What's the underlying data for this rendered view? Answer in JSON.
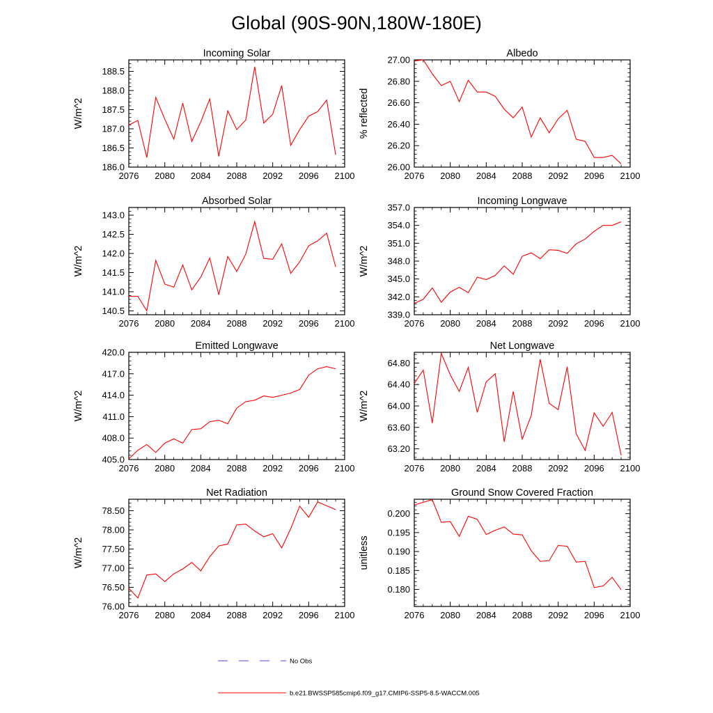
{
  "page_title": "Global (90S-90N,180W-180E)",
  "colors": {
    "series": "#ff0000",
    "obs": "#4a4ad8",
    "axis": "#000000"
  },
  "legend": {
    "obs_label": "No Obs",
    "model_label": "b.e21.BWSSP585cmip6.f09_g17.CMIP6-SSP5-8.5-WACCM.005"
  },
  "chart_data": [
    {
      "type": "line",
      "title": "Incoming Solar",
      "xlabel": "",
      "ylabel": "W/m^2",
      "xlim": [
        2076,
        2100
      ],
      "ylim": [
        186.0,
        188.8
      ],
      "xticks": [
        "2076",
        "2080",
        "2084",
        "2088",
        "2092",
        "2096",
        "2100"
      ],
      "yticks": [
        "186.0",
        "186.5",
        "187.0",
        "187.5",
        "188.0",
        "188.5"
      ],
      "x": [
        2076,
        2077,
        2078,
        2079,
        2080,
        2081,
        2082,
        2083,
        2084,
        2085,
        2086,
        2087,
        2088,
        2089,
        2090,
        2091,
        2092,
        2093,
        2094,
        2095,
        2096,
        2097,
        2098,
        2099
      ],
      "values": [
        187.1,
        187.22,
        186.25,
        187.82,
        187.25,
        186.73,
        187.67,
        186.67,
        187.18,
        187.78,
        186.28,
        187.47,
        186.98,
        187.23,
        188.62,
        187.15,
        187.38,
        188.13,
        186.57,
        186.98,
        187.33,
        187.45,
        187.75,
        186.32
      ]
    },
    {
      "type": "line",
      "title": "Albedo",
      "xlabel": "",
      "ylabel": "% reflected",
      "xlim": [
        2076,
        2100
      ],
      "ylim": [
        26.0,
        27.0
      ],
      "xticks": [
        "2076",
        "2080",
        "2084",
        "2088",
        "2092",
        "2096",
        "2100"
      ],
      "yticks": [
        "26.00",
        "26.20",
        "26.40",
        "26.60",
        "26.80",
        "27.00"
      ],
      "x": [
        2076,
        2077,
        2078,
        2079,
        2080,
        2081,
        2082,
        2083,
        2084,
        2085,
        2086,
        2087,
        2088,
        2089,
        2090,
        2091,
        2092,
        2093,
        2094,
        2095,
        2096,
        2097,
        2098,
        2099
      ],
      "values": [
        26.99,
        27.0,
        26.87,
        26.76,
        26.8,
        26.61,
        26.81,
        26.7,
        26.7,
        26.66,
        26.54,
        26.46,
        26.56,
        26.28,
        26.46,
        26.32,
        26.45,
        26.53,
        26.26,
        26.24,
        26.09,
        26.09,
        26.11,
        26.03
      ]
    },
    {
      "type": "line",
      "title": "Absorbed Solar",
      "xlabel": "",
      "ylabel": "W/m^2",
      "xlim": [
        2076,
        2100
      ],
      "ylim": [
        140.4,
        143.2
      ],
      "xticks": [
        "2076",
        "2080",
        "2084",
        "2088",
        "2092",
        "2096",
        "2100"
      ],
      "yticks": [
        "140.5",
        "141.0",
        "141.5",
        "142.0",
        "142.5",
        "143.0"
      ],
      "x": [
        2076,
        2077,
        2078,
        2079,
        2080,
        2081,
        2082,
        2083,
        2084,
        2085,
        2086,
        2087,
        2088,
        2089,
        2090,
        2091,
        2092,
        2093,
        2094,
        2095,
        2096,
        2097,
        2098,
        2099
      ],
      "values": [
        140.88,
        140.88,
        140.5,
        141.82,
        141.2,
        141.12,
        141.7,
        141.05,
        141.38,
        141.88,
        140.92,
        141.92,
        141.53,
        141.98,
        142.83,
        141.87,
        141.85,
        142.25,
        141.48,
        141.78,
        142.2,
        142.33,
        142.53,
        141.65
      ]
    },
    {
      "type": "line",
      "title": "Incoming Longwave",
      "xlabel": "",
      "ylabel": "W/m^2",
      "xlim": [
        2076,
        2100
      ],
      "ylim": [
        339.0,
        357.0
      ],
      "xticks": [
        "2076",
        "2080",
        "2084",
        "2088",
        "2092",
        "2096",
        "2100"
      ],
      "yticks": [
        "339.0",
        "342.0",
        "345.0",
        "348.0",
        "351.0",
        "354.0",
        "357.0"
      ],
      "x": [
        2076,
        2077,
        2078,
        2079,
        2080,
        2081,
        2082,
        2083,
        2084,
        2085,
        2086,
        2087,
        2088,
        2089,
        2090,
        2091,
        2092,
        2093,
        2094,
        2095,
        2096,
        2097,
        2098,
        2099
      ],
      "values": [
        340.9,
        341.6,
        343.5,
        341.1,
        342.8,
        343.6,
        342.7,
        345.3,
        344.9,
        345.6,
        347.2,
        345.8,
        348.8,
        349.4,
        348.4,
        349.9,
        349.8,
        349.3,
        350.9,
        351.7,
        353.0,
        354.0,
        354.0,
        354.6
      ]
    },
    {
      "type": "line",
      "title": "Emitted Longwave",
      "xlabel": "",
      "ylabel": "W/m^2",
      "xlim": [
        2076,
        2100
      ],
      "ylim": [
        405.0,
        420.0
      ],
      "xticks": [
        "2076",
        "2080",
        "2084",
        "2088",
        "2092",
        "2096",
        "2100"
      ],
      "yticks": [
        "405.0",
        "408.0",
        "411.0",
        "414.0",
        "417.0",
        "420.0"
      ],
      "x": [
        2076,
        2077,
        2078,
        2079,
        2080,
        2081,
        2082,
        2083,
        2084,
        2085,
        2086,
        2087,
        2088,
        2089,
        2090,
        2091,
        2092,
        2093,
        2094,
        2095,
        2096,
        2097,
        2098,
        2099
      ],
      "values": [
        405.1,
        406.3,
        407.1,
        406.0,
        407.3,
        407.9,
        407.3,
        409.2,
        409.3,
        410.3,
        410.5,
        410.0,
        412.2,
        413.1,
        413.3,
        413.9,
        413.7,
        414.0,
        414.3,
        414.8,
        416.8,
        417.7,
        418.0,
        417.7
      ]
    },
    {
      "type": "line",
      "title": "Net Longwave",
      "xlabel": "",
      "ylabel": "W/m^2",
      "xlim": [
        2076,
        2100
      ],
      "ylim": [
        63.0,
        65.0
      ],
      "xticks": [
        "2076",
        "2080",
        "2084",
        "2088",
        "2092",
        "2096",
        "2100"
      ],
      "yticks": [
        "63.20",
        "63.60",
        "64.00",
        "64.40",
        "64.80"
      ],
      "x": [
        2076,
        2077,
        2078,
        2079,
        2080,
        2081,
        2082,
        2083,
        2084,
        2085,
        2086,
        2087,
        2088,
        2089,
        2090,
        2091,
        2092,
        2093,
        2094,
        2095,
        2096,
        2097,
        2098,
        2099
      ],
      "values": [
        64.42,
        64.67,
        63.68,
        64.98,
        64.58,
        64.27,
        64.72,
        63.88,
        64.45,
        64.6,
        63.33,
        64.27,
        63.38,
        63.82,
        64.87,
        64.05,
        63.93,
        64.73,
        63.48,
        63.17,
        63.87,
        63.62,
        63.88,
        63.08
      ]
    },
    {
      "type": "line",
      "title": "Net Radiation",
      "xlabel": "",
      "ylabel": "W/m^2",
      "xlim": [
        2076,
        2100
      ],
      "ylim": [
        76.0,
        78.8
      ],
      "xticks": [
        "2076",
        "2080",
        "2084",
        "2088",
        "2092",
        "2096",
        "2100"
      ],
      "yticks": [
        "76.00",
        "76.50",
        "77.00",
        "77.50",
        "78.00",
        "78.50"
      ],
      "x": [
        2076,
        2077,
        2078,
        2079,
        2080,
        2081,
        2082,
        2083,
        2084,
        2085,
        2086,
        2087,
        2088,
        2089,
        2090,
        2091,
        2092,
        2093,
        2094,
        2095,
        2096,
        2097,
        2098,
        2099
      ],
      "values": [
        76.48,
        76.22,
        76.82,
        76.85,
        76.65,
        76.85,
        76.98,
        77.15,
        76.93,
        77.3,
        77.58,
        77.63,
        78.13,
        78.15,
        77.97,
        77.82,
        77.9,
        77.53,
        78.03,
        78.62,
        78.33,
        78.73,
        78.63,
        78.53
      ]
    },
    {
      "type": "line",
      "title": "Ground Snow Covered Fraction",
      "xlabel": "",
      "ylabel": "unitless",
      "xlim": [
        2076,
        2100
      ],
      "ylim": [
        0.1755,
        0.2038
      ],
      "xticks": [
        "2076",
        "2080",
        "2084",
        "2088",
        "2092",
        "2096",
        "2100"
      ],
      "yticks": [
        "0.180",
        "0.185",
        "0.190",
        "0.195",
        "0.200"
      ],
      "x": [
        2076,
        2077,
        2078,
        2079,
        2080,
        2081,
        2082,
        2083,
        2084,
        2085,
        2086,
        2087,
        2088,
        2089,
        2090,
        2091,
        2092,
        2093,
        2094,
        2095,
        2096,
        2097,
        2098,
        2099
      ],
      "values": [
        0.2023,
        0.203,
        0.2037,
        0.1977,
        0.1979,
        0.194,
        0.1993,
        0.1985,
        0.1945,
        0.1956,
        0.1965,
        0.1946,
        0.1944,
        0.1902,
        0.1874,
        0.1876,
        0.1916,
        0.1914,
        0.1872,
        0.1874,
        0.1805,
        0.1809,
        0.1832,
        0.1799
      ]
    }
  ]
}
